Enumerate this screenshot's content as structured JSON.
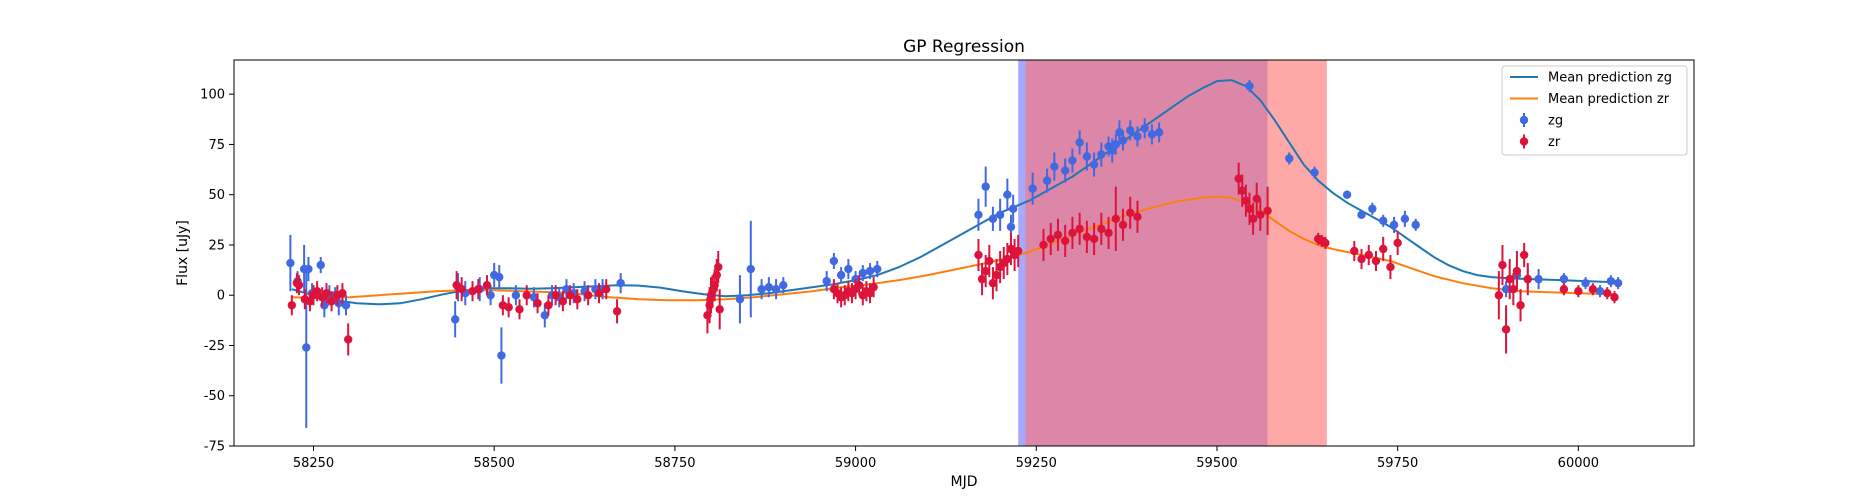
{
  "chart_data": {
    "type": "scatter",
    "title": "GP Regression",
    "xlabel": "MJD",
    "ylabel": "Flux [uJy]",
    "xlim": [
      58140,
      60160
    ],
    "ylim": [
      -75,
      117
    ],
    "xticks": [
      58250,
      58500,
      58750,
      59000,
      59250,
      59500,
      59750,
      60000
    ],
    "yticks": [
      -75,
      -50,
      -25,
      0,
      25,
      50,
      75,
      100
    ],
    "grid": false,
    "legend_position": "top-right",
    "shaded_regions": [
      {
        "x0": 59225,
        "x1": 59570,
        "color": "#8a8cff",
        "opacity": 0.75
      },
      {
        "x0": 59235,
        "x1": 59652,
        "color": "#ff7373",
        "opacity": 0.62
      }
    ],
    "series": [
      {
        "name": "Mean prediction zg",
        "kind": "line",
        "color": "#1f77b4",
        "x": [
          58220,
          58250,
          58280,
          58310,
          58340,
          58370,
          58400,
          58430,
          58460,
          58490,
          58520,
          58550,
          58580,
          58610,
          58640,
          58670,
          58700,
          58730,
          58760,
          58790,
          58820,
          58850,
          58880,
          58910,
          58940,
          58970,
          59000,
          59030,
          59060,
          59090,
          59120,
          59150,
          59180,
          59200,
          59220,
          59240,
          59260,
          59280,
          59300,
          59320,
          59340,
          59360,
          59380,
          59400,
          59420,
          59440,
          59460,
          59480,
          59500,
          59520,
          59540,
          59560,
          59580,
          59600,
          59620,
          59640,
          59660,
          59680,
          59700,
          59720,
          59740,
          59760,
          59780,
          59800,
          59820,
          59840,
          59860,
          59880,
          59900,
          59920,
          59950,
          59980,
          60010,
          60050
        ],
        "y": [
          3,
          0,
          -2.5,
          -4,
          -4.5,
          -4,
          -2,
          0.5,
          2.5,
          3.5,
          3.5,
          3.2,
          3.5,
          4,
          4.5,
          5,
          4.8,
          3.8,
          2,
          0.5,
          -0.5,
          0,
          1,
          2.5,
          4,
          5.5,
          7.5,
          10,
          14,
          19,
          25,
          31,
          37,
          41,
          44,
          47,
          51,
          55,
          59,
          64,
          69,
          74,
          79,
          84,
          89,
          94,
          99,
          103,
          106.5,
          107,
          104,
          97,
          87,
          76,
          65,
          57,
          51,
          46,
          42,
          38,
          34,
          29,
          24,
          19,
          15,
          12,
          10,
          9,
          8.5,
          8.2,
          7.8,
          7.4,
          7,
          6.5
        ]
      },
      {
        "name": "Mean prediction zr",
        "kind": "line",
        "color": "#ff7f0e",
        "x": [
          58220,
          58260,
          58300,
          58340,
          58380,
          58420,
          58460,
          58500,
          58540,
          58580,
          58620,
          58660,
          58700,
          58740,
          58780,
          58820,
          58860,
          58900,
          58940,
          58980,
          59020,
          59060,
          59100,
          59140,
          59180,
          59210,
          59240,
          59270,
          59300,
          59330,
          59360,
          59390,
          59420,
          59450,
          59480,
          59500,
          59520,
          59540,
          59560,
          59580,
          59600,
          59620,
          59640,
          59660,
          59680,
          59700,
          59720,
          59740,
          59760,
          59780,
          59800,
          59840,
          59880,
          59920,
          59960,
          60000,
          60050
        ],
        "y": [
          -1,
          -1.5,
          -1,
          0,
          1,
          2,
          2.5,
          2.5,
          2,
          1.5,
          0.5,
          -1,
          -2,
          -2.5,
          -2.5,
          -2,
          -1,
          0.5,
          2,
          4,
          5.5,
          7.5,
          10,
          13,
          16,
          18.5,
          21.5,
          25.5,
          30,
          34,
          38,
          41.5,
          44.5,
          47,
          48.5,
          49,
          48.5,
          46,
          42,
          37,
          32,
          28,
          25,
          23,
          21.5,
          20,
          18.5,
          17,
          14.5,
          12,
          9.5,
          6,
          3.5,
          2,
          1.5,
          1,
          0.5
        ]
      },
      {
        "name": "zg",
        "kind": "errorbar",
        "color": "#4169e1",
        "x": [
          58218,
          58228,
          58237,
          58240,
          58243,
          58248,
          58260,
          58265,
          58272,
          58280,
          58285,
          58295,
          58446,
          58450,
          58460,
          58480,
          58495,
          58500,
          58507,
          58510,
          58530,
          58555,
          58570,
          58580,
          58590,
          58600,
          58610,
          58625,
          58640,
          58650,
          58675,
          58840,
          58855,
          58870,
          58880,
          58890,
          58900,
          58960,
          58970,
          58980,
          58990,
          59000,
          59010,
          59020,
          59030,
          59170,
          59180,
          59190,
          59200,
          59210,
          59215,
          59218,
          59245,
          59265,
          59275,
          59290,
          59300,
          59310,
          59320,
          59330,
          59340,
          59350,
          59355,
          59360,
          59365,
          59370,
          59380,
          59390,
          59400,
          59410,
          59420,
          59545,
          59600,
          59635,
          59680,
          59700,
          59715,
          59730,
          59745,
          59760,
          59775,
          59900,
          59915,
          59930,
          59945,
          59980,
          60010,
          60030,
          60045,
          60055
        ],
        "y": [
          16,
          7,
          13,
          -26,
          13,
          1,
          15,
          -5,
          0,
          0,
          -4,
          -5,
          -12,
          4,
          1,
          3,
          0,
          10,
          9,
          -30,
          0,
          -1,
          -10,
          0,
          -1,
          3,
          1,
          2,
          3,
          3,
          6,
          -2,
          13,
          3,
          4,
          3,
          5,
          7,
          17,
          10,
          13,
          8,
          11,
          12,
          13,
          40,
          54,
          38,
          40,
          50,
          34,
          43,
          53,
          57,
          64,
          62,
          67,
          76,
          69,
          65,
          70,
          74,
          72,
          75,
          81,
          77,
          82,
          79,
          83,
          80,
          81,
          104,
          68,
          61,
          50,
          40,
          43,
          37,
          35,
          38,
          35,
          3,
          10,
          8,
          8,
          8,
          6,
          2,
          7,
          6
        ],
        "err": [
          14,
          5,
          12,
          40,
          6,
          5,
          4,
          6,
          5,
          4,
          6,
          5,
          9,
          7,
          6,
          6,
          5,
          6,
          6,
          14,
          5,
          5,
          6,
          5,
          5,
          5,
          5,
          5,
          5,
          5,
          5,
          12,
          24,
          5,
          5,
          5,
          4,
          5,
          4,
          4,
          5,
          4,
          4,
          4,
          4,
          8,
          10,
          6,
          8,
          8,
          6,
          7,
          8,
          6,
          7,
          6,
          6,
          6,
          7,
          6,
          6,
          5,
          6,
          5,
          6,
          5,
          5,
          5,
          5,
          5,
          5,
          3,
          3,
          3,
          2,
          2,
          3,
          3,
          4,
          4,
          3,
          4,
          4,
          5,
          5,
          3,
          3,
          3,
          3,
          3
        ]
      },
      {
        "name": "zr",
        "kind": "errorbar",
        "color": "#dc143c",
        "x": [
          58220,
          58227,
          58230,
          58238,
          58245,
          58250,
          58255,
          58262,
          58268,
          58275,
          58283,
          58290,
          58298,
          58448,
          58455,
          58470,
          58478,
          58490,
          58512,
          58520,
          58535,
          58545,
          58560,
          58575,
          58585,
          58595,
          58605,
          58615,
          58630,
          58645,
          58655,
          58670,
          58795,
          58798,
          58800,
          58802,
          58805,
          58808,
          58810,
          58812,
          58970,
          58975,
          58980,
          58985,
          58990,
          58995,
          59000,
          59005,
          59010,
          59015,
          59020,
          59025,
          59170,
          59175,
          59180,
          59185,
          59190,
          59195,
          59200,
          59205,
          59210,
          59215,
          59220,
          59225,
          59260,
          59270,
          59280,
          59290,
          59300,
          59310,
          59320,
          59330,
          59340,
          59350,
          59360,
          59370,
          59380,
          59390,
          59530,
          59535,
          59540,
          59545,
          59550,
          59555,
          59560,
          59570,
          59640,
          59645,
          59650,
          59690,
          59700,
          59710,
          59720,
          59730,
          59740,
          59750,
          59890,
          59895,
          59900,
          59905,
          59910,
          59915,
          59920,
          59925,
          59930,
          59980,
          60000,
          60020,
          60040,
          60050
        ],
        "y": [
          -5,
          6,
          5,
          -2,
          -3,
          0,
          2,
          -1,
          1,
          -3,
          0,
          1,
          -22,
          5,
          3,
          2,
          3,
          5,
          -5,
          -6,
          -7,
          0,
          -4,
          -5,
          0,
          -3,
          0,
          -2,
          0,
          1,
          3,
          -8,
          -10,
          -5,
          0,
          2,
          5,
          10,
          14,
          -7,
          3,
          1,
          -1,
          0,
          2,
          1,
          3,
          5,
          0,
          2,
          1,
          4,
          20,
          8,
          12,
          17,
          6,
          10,
          14,
          16,
          18,
          23,
          20,
          22,
          25,
          28,
          30,
          27,
          31,
          33,
          29,
          28,
          33,
          31,
          38,
          35,
          41,
          39,
          58,
          52,
          47,
          43,
          38,
          48,
          40,
          42,
          28,
          27,
          26,
          22,
          18,
          20,
          17,
          23,
          14,
          26,
          0,
          15,
          -17,
          8,
          3,
          12,
          -5,
          20,
          8,
          3,
          2,
          3,
          1,
          -1
        ],
        "err": [
          5,
          5,
          5,
          5,
          5,
          5,
          5,
          5,
          5,
          5,
          5,
          5,
          8,
          7,
          6,
          5,
          5,
          5,
          5,
          5,
          5,
          5,
          5,
          5,
          5,
          5,
          5,
          5,
          5,
          5,
          5,
          6,
          9,
          9,
          9,
          8,
          8,
          8,
          8,
          10,
          5,
          5,
          5,
          5,
          5,
          5,
          5,
          5,
          5,
          5,
          5,
          5,
          8,
          8,
          8,
          8,
          8,
          8,
          8,
          8,
          8,
          8,
          8,
          8,
          8,
          8,
          8,
          8,
          8,
          8,
          8,
          8,
          8,
          8,
          16,
          8,
          8,
          8,
          8,
          8,
          8,
          8,
          8,
          8,
          8,
          12,
          3,
          3,
          3,
          5,
          5,
          5,
          5,
          6,
          6,
          6,
          12,
          10,
          12,
          10,
          8,
          10,
          8,
          6,
          8,
          3,
          3,
          3,
          3,
          3
        ]
      }
    ]
  }
}
